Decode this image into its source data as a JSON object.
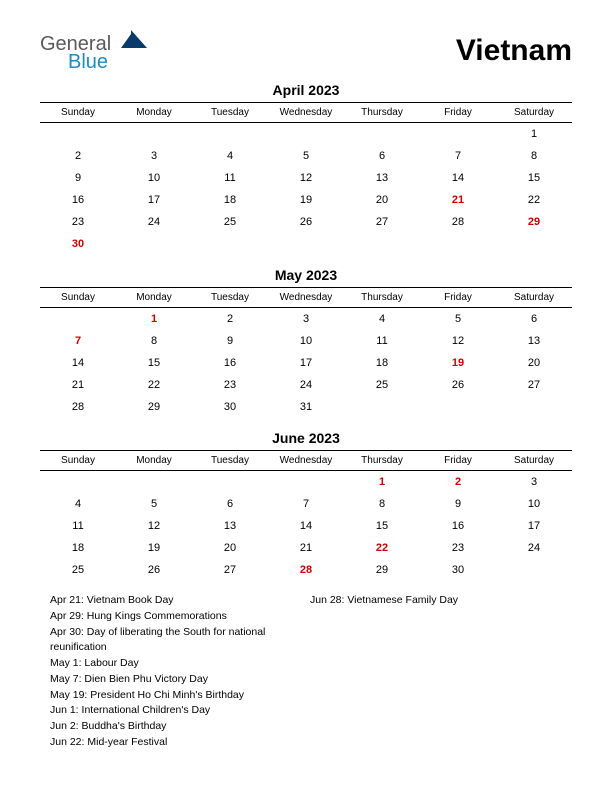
{
  "logo": {
    "word1": "General",
    "word2": "Blue",
    "color1": "#5a5a5a",
    "color2": "#1a8cc8",
    "shape_color": "#0a3a6a"
  },
  "country": "Vietnam",
  "background_color": "#ffffff",
  "text_color": "#000000",
  "holiday_color": "#d00000",
  "dow_labels": [
    "Sunday",
    "Monday",
    "Tuesday",
    "Wednesday",
    "Thursday",
    "Friday",
    "Saturday"
  ],
  "months": [
    {
      "title": "April 2023",
      "weeks": [
        [
          "",
          "",
          "",
          "",
          "",
          "",
          "1"
        ],
        [
          "2",
          "3",
          "4",
          "5",
          "6",
          "7",
          "8"
        ],
        [
          "9",
          "10",
          "11",
          "12",
          "13",
          "14",
          "15"
        ],
        [
          "16",
          "17",
          "18",
          "19",
          "20",
          "21",
          "22"
        ],
        [
          "23",
          "24",
          "25",
          "26",
          "27",
          "28",
          "29"
        ],
        [
          "30",
          "",
          "",
          "",
          "",
          "",
          ""
        ]
      ],
      "holidays": [
        "21",
        "29",
        "30"
      ]
    },
    {
      "title": "May 2023",
      "weeks": [
        [
          "",
          "1",
          "2",
          "3",
          "4",
          "5",
          "6"
        ],
        [
          "7",
          "8",
          "9",
          "10",
          "11",
          "12",
          "13"
        ],
        [
          "14",
          "15",
          "16",
          "17",
          "18",
          "19",
          "20"
        ],
        [
          "21",
          "22",
          "23",
          "24",
          "25",
          "26",
          "27"
        ],
        [
          "28",
          "29",
          "30",
          "31",
          "",
          "",
          ""
        ]
      ],
      "holidays": [
        "1",
        "7",
        "19"
      ]
    },
    {
      "title": "June 2023",
      "weeks": [
        [
          "",
          "",
          "",
          "",
          "1",
          "2",
          "3"
        ],
        [
          "4",
          "5",
          "6",
          "7",
          "8",
          "9",
          "10"
        ],
        [
          "11",
          "12",
          "13",
          "14",
          "15",
          "16",
          "17"
        ],
        [
          "18",
          "19",
          "20",
          "21",
          "22",
          "23",
          "24"
        ],
        [
          "25",
          "26",
          "27",
          "28",
          "29",
          "30",
          ""
        ]
      ],
      "holidays": [
        "1",
        "2",
        "22",
        "28"
      ]
    }
  ],
  "holiday_list_col1": [
    "Apr 21: Vietnam Book Day",
    "Apr 29: Hung Kings Commemorations",
    "Apr 30: Day of liberating the South for national reunification",
    "May 1: Labour Day",
    "May 7: Dien Bien Phu Victory Day",
    "May 19: President Ho Chi Minh's Birthday",
    "Jun 1: International Children's Day",
    "Jun 2: Buddha's Birthday",
    "Jun 22: Mid-year Festival"
  ],
  "holiday_list_col2": [
    "Jun 28: Vietnamese Family Day"
  ],
  "typography": {
    "country_fontsize": 30,
    "month_title_fontsize": 14,
    "dow_fontsize": 10,
    "day_fontsize": 11,
    "holiday_list_fontsize": 10.5
  }
}
